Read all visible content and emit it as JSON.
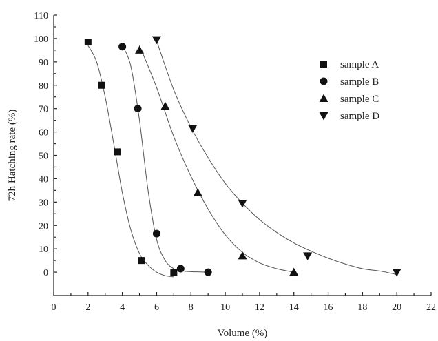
{
  "chart_data": {
    "type": "scatter",
    "title": "",
    "xlabel": "Volume (%)",
    "ylabel": "72h Hatching rate (%)",
    "xlim": [
      0,
      22
    ],
    "ylim": [
      -10,
      110
    ],
    "xticks": [
      0,
      2,
      4,
      6,
      8,
      10,
      12,
      14,
      16,
      18,
      20,
      22
    ],
    "yticks": [
      0,
      10,
      20,
      30,
      40,
      50,
      60,
      70,
      80,
      90,
      100,
      110
    ],
    "grid": false,
    "legend": "top-right",
    "series": [
      {
        "name": "sample A",
        "marker": "square",
        "color": "#111111",
        "x": [
          2.0,
          2.8,
          3.7,
          5.1,
          7.0
        ],
        "y": [
          98.5,
          80,
          51.5,
          5,
          0
        ],
        "fit_x": [
          2.0,
          2.5,
          3.0,
          3.5,
          4.0,
          4.5,
          5.0,
          5.5,
          6.0,
          6.5,
          7.0
        ],
        "fit_y": [
          97,
          90,
          75,
          55,
          34,
          18,
          8,
          3,
          0,
          -1.5,
          -2
        ]
      },
      {
        "name": "sample B",
        "marker": "circle",
        "color": "#111111",
        "x": [
          4.0,
          4.9,
          6.0,
          7.4,
          9.0
        ],
        "y": [
          96.5,
          70,
          16.5,
          1.5,
          0
        ],
        "fit_x": [
          4.0,
          4.5,
          5.0,
          5.5,
          6.0,
          6.5,
          7.0,
          7.5,
          8.0,
          8.5,
          9.0
        ],
        "fit_y": [
          97,
          88,
          65,
          35,
          14,
          5,
          1.5,
          0.5,
          0.2,
          0.1,
          0
        ]
      },
      {
        "name": "sample C",
        "marker": "triangle-up",
        "color": "#111111",
        "x": [
          5.0,
          6.5,
          8.4,
          11.0,
          14.0
        ],
        "y": [
          95,
          71,
          34,
          7,
          0
        ],
        "fit_x": [
          5.0,
          6.0,
          7.0,
          8.0,
          9.0,
          10.0,
          11.0,
          12.0,
          13.0,
          14.0
        ],
        "fit_y": [
          97,
          79,
          58,
          41,
          27,
          16,
          8.5,
          4,
          1.5,
          0
        ]
      },
      {
        "name": "sample D",
        "marker": "triangle-down",
        "color": "#111111",
        "x": [
          6.0,
          8.1,
          11.0,
          14.8,
          20.0
        ],
        "y": [
          99.5,
          61.5,
          29.5,
          7,
          0
        ],
        "fit_x": [
          6.0,
          7.0,
          8.0,
          9.0,
          10.0,
          11.0,
          12.0,
          13.0,
          14.0,
          15.0,
          16.0,
          17.0,
          18.0,
          19.0,
          20.0
        ],
        "fit_y": [
          99,
          78,
          62,
          49,
          38,
          29.5,
          22.5,
          17,
          12.5,
          9,
          6,
          3.5,
          1.5,
          0.5,
          -1
        ]
      }
    ]
  }
}
